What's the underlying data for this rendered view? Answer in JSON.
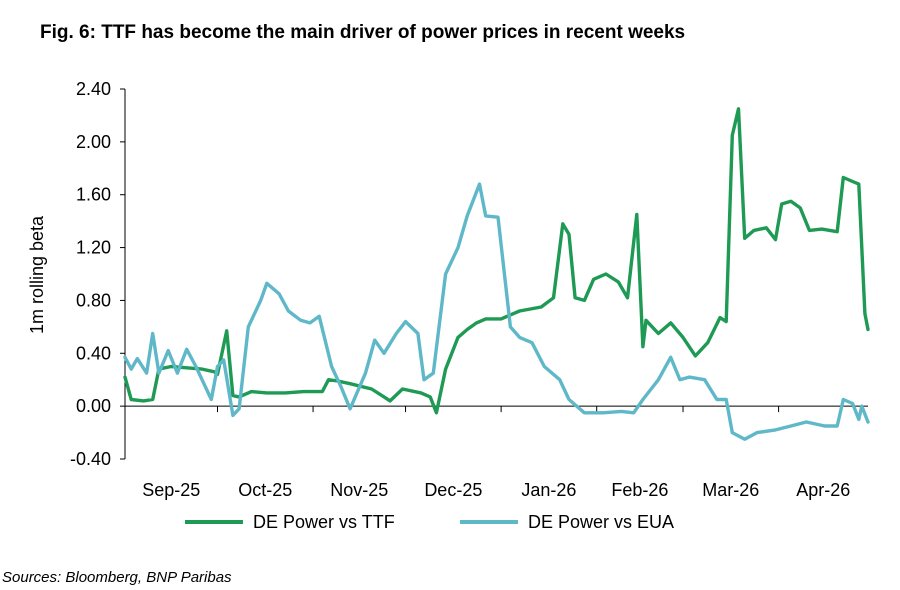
{
  "title": "Fig. 6: TTF has become the main driver of power prices in recent weeks",
  "source": "Sources: Bloomberg,  BNP Paribas",
  "chart_data": {
    "type": "line",
    "title": "Fig. 6: TTF has become the main driver of power prices in recent weeks",
    "xlabel": "",
    "ylabel": "1m rolling beta",
    "x_range": [
      "2025-09-01",
      "2026-04-30"
    ],
    "x_ticks": [
      {
        "date": "2025-09-01",
        "label": "Sep-25"
      },
      {
        "date": "2025-10-01",
        "label": "Oct-25"
      },
      {
        "date": "2025-11-01",
        "label": "Nov-25"
      },
      {
        "date": "2025-12-01",
        "label": "Dec-25"
      },
      {
        "date": "2026-01-01",
        "label": "Jan-26"
      },
      {
        "date": "2026-02-01",
        "label": "Feb-26"
      },
      {
        "date": "2026-03-01",
        "label": "Mar-26"
      },
      {
        "date": "2026-04-01",
        "label": "Apr-26"
      }
    ],
    "ylim": [
      -0.4,
      2.4
    ],
    "y_ticks": [
      -0.4,
      0.0,
      0.4,
      0.8,
      1.2,
      1.6,
      2.0,
      2.4
    ],
    "y_tick_labels": [
      "-0.40",
      "0.00",
      "0.40",
      "0.80",
      "1.20",
      "1.60",
      "2.00",
      "2.40"
    ],
    "grid": false,
    "legend_position": "bottom",
    "series": [
      {
        "name": "DE Power vs TTF",
        "color": "#1e9a55",
        "points": [
          [
            "2025-09-01",
            0.22
          ],
          [
            "2025-09-03",
            0.05
          ],
          [
            "2025-09-07",
            0.04
          ],
          [
            "2025-09-10",
            0.05
          ],
          [
            "2025-09-12",
            0.28
          ],
          [
            "2025-09-16",
            0.3
          ],
          [
            "2025-09-21",
            0.29
          ],
          [
            "2025-09-26",
            0.28
          ],
          [
            "2025-09-30",
            0.26
          ],
          [
            "2025-10-01",
            0.24
          ],
          [
            "2025-10-04",
            0.57
          ],
          [
            "2025-10-06",
            0.08
          ],
          [
            "2025-10-08",
            0.07
          ],
          [
            "2025-10-12",
            0.11
          ],
          [
            "2025-10-17",
            0.1
          ],
          [
            "2025-10-23",
            0.1
          ],
          [
            "2025-10-29",
            0.11
          ],
          [
            "2025-11-04",
            0.11
          ],
          [
            "2025-11-06",
            0.2
          ],
          [
            "2025-11-09",
            0.19
          ],
          [
            "2025-11-13",
            0.17
          ],
          [
            "2025-11-20",
            0.13
          ],
          [
            "2025-11-24",
            0.07
          ],
          [
            "2025-11-26",
            0.04
          ],
          [
            "2025-11-30",
            0.13
          ],
          [
            "2025-12-06",
            0.1
          ],
          [
            "2025-12-09",
            0.07
          ],
          [
            "2025-12-11",
            -0.05
          ],
          [
            "2025-12-14",
            0.28
          ],
          [
            "2025-12-18",
            0.52
          ],
          [
            "2025-12-21",
            0.58
          ],
          [
            "2025-12-24",
            0.63
          ],
          [
            "2025-12-27",
            0.66
          ],
          [
            "2026-01-01",
            0.66
          ],
          [
            "2026-01-07",
            0.72
          ],
          [
            "2026-01-14",
            0.75
          ],
          [
            "2026-01-18",
            0.82
          ],
          [
            "2026-01-21",
            1.38
          ],
          [
            "2026-01-23",
            1.3
          ],
          [
            "2026-01-25",
            0.82
          ],
          [
            "2026-01-28",
            0.8
          ],
          [
            "2026-01-31",
            0.96
          ],
          [
            "2026-02-04",
            1.0
          ],
          [
            "2026-02-08",
            0.94
          ],
          [
            "2026-02-11",
            0.82
          ],
          [
            "2026-02-14",
            1.45
          ],
          [
            "2026-02-16",
            0.45
          ],
          [
            "2026-02-17",
            0.65
          ],
          [
            "2026-02-21",
            0.55
          ],
          [
            "2026-02-25",
            0.63
          ],
          [
            "2026-03-01",
            0.52
          ],
          [
            "2026-03-05",
            0.38
          ],
          [
            "2026-03-09",
            0.48
          ],
          [
            "2026-03-13",
            0.67
          ],
          [
            "2026-03-15",
            0.64
          ],
          [
            "2026-03-17",
            2.05
          ],
          [
            "2026-03-19",
            2.25
          ],
          [
            "2026-03-21",
            1.27
          ],
          [
            "2026-03-24",
            1.33
          ],
          [
            "2026-03-28",
            1.35
          ],
          [
            "2026-03-31",
            1.26
          ],
          [
            "2026-04-02",
            1.53
          ],
          [
            "2026-04-05",
            1.55
          ],
          [
            "2026-04-08",
            1.5
          ],
          [
            "2026-04-11",
            1.33
          ],
          [
            "2026-04-15",
            1.34
          ],
          [
            "2026-04-20",
            1.32
          ],
          [
            "2026-04-22",
            1.73
          ],
          [
            "2026-04-25",
            1.7
          ],
          [
            "2026-04-27",
            1.68
          ],
          [
            "2026-04-29",
            0.7
          ],
          [
            "2026-04-30",
            0.58
          ]
        ]
      },
      {
        "name": "DE Power vs EUA",
        "color": "#5fb8c8",
        "points": [
          [
            "2025-09-01",
            0.37
          ],
          [
            "2025-09-03",
            0.28
          ],
          [
            "2025-09-05",
            0.36
          ],
          [
            "2025-09-08",
            0.25
          ],
          [
            "2025-09-10",
            0.55
          ],
          [
            "2025-09-12",
            0.25
          ],
          [
            "2025-09-15",
            0.42
          ],
          [
            "2025-09-18",
            0.25
          ],
          [
            "2025-09-21",
            0.43
          ],
          [
            "2025-09-24",
            0.3
          ],
          [
            "2025-09-29",
            0.05
          ],
          [
            "2025-10-01",
            0.3
          ],
          [
            "2025-10-03",
            0.35
          ],
          [
            "2025-10-06",
            -0.07
          ],
          [
            "2025-10-08",
            -0.02
          ],
          [
            "2025-10-11",
            0.6
          ],
          [
            "2025-10-15",
            0.8
          ],
          [
            "2025-10-17",
            0.93
          ],
          [
            "2025-10-21",
            0.85
          ],
          [
            "2025-10-24",
            0.72
          ],
          [
            "2025-10-28",
            0.65
          ],
          [
            "2025-10-31",
            0.63
          ],
          [
            "2025-11-03",
            0.68
          ],
          [
            "2025-11-07",
            0.3
          ],
          [
            "2025-11-10",
            0.15
          ],
          [
            "2025-11-13",
            -0.02
          ],
          [
            "2025-11-18",
            0.25
          ],
          [
            "2025-11-21",
            0.5
          ],
          [
            "2025-11-24",
            0.4
          ],
          [
            "2025-11-28",
            0.55
          ],
          [
            "2025-12-01",
            0.64
          ],
          [
            "2025-12-05",
            0.55
          ],
          [
            "2025-12-07",
            0.2
          ],
          [
            "2025-12-10",
            0.25
          ],
          [
            "2025-12-14",
            1.0
          ],
          [
            "2025-12-18",
            1.2
          ],
          [
            "2025-12-21",
            1.44
          ],
          [
            "2025-12-25",
            1.68
          ],
          [
            "2025-12-27",
            1.44
          ],
          [
            "2025-12-31",
            1.43
          ],
          [
            "2026-01-04",
            0.6
          ],
          [
            "2026-01-07",
            0.52
          ],
          [
            "2026-01-11",
            0.48
          ],
          [
            "2026-01-15",
            0.3
          ],
          [
            "2026-01-20",
            0.2
          ],
          [
            "2026-01-23",
            0.05
          ],
          [
            "2026-01-28",
            -0.05
          ],
          [
            "2026-02-03",
            -0.05
          ],
          [
            "2026-02-09",
            -0.04
          ],
          [
            "2026-02-13",
            -0.05
          ],
          [
            "2026-02-16",
            0.05
          ],
          [
            "2026-02-21",
            0.2
          ],
          [
            "2026-02-25",
            0.37
          ],
          [
            "2026-02-28",
            0.2
          ],
          [
            "2026-03-03",
            0.22
          ],
          [
            "2026-03-08",
            0.2
          ],
          [
            "2026-03-12",
            0.05
          ],
          [
            "2026-03-15",
            0.05
          ],
          [
            "2026-03-17",
            -0.2
          ],
          [
            "2026-03-21",
            -0.25
          ],
          [
            "2026-03-25",
            -0.2
          ],
          [
            "2026-03-31",
            -0.18
          ],
          [
            "2026-04-05",
            -0.15
          ],
          [
            "2026-04-10",
            -0.12
          ],
          [
            "2026-04-16",
            -0.15
          ],
          [
            "2026-04-20",
            -0.15
          ],
          [
            "2026-04-22",
            0.05
          ],
          [
            "2026-04-25",
            0.02
          ],
          [
            "2026-04-27",
            -0.1
          ],
          [
            "2026-04-28",
            0.0
          ],
          [
            "2026-04-30",
            -0.12
          ]
        ]
      }
    ]
  }
}
